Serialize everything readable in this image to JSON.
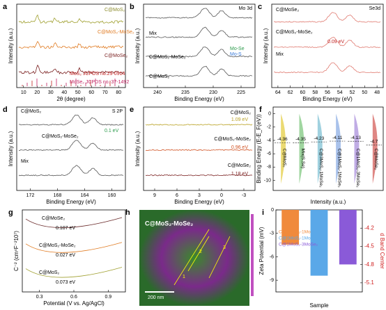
{
  "panels": [
    {
      "label": "a",
      "xlabel": "2θ (degree)",
      "ylabel": "Intensity (a.u.)",
      "xticks": [
        10,
        20,
        30,
        40,
        50,
        60,
        70,
        80
      ],
      "texts": [
        "C@MoS₂",
        "C@MoS₂-MoSe₂",
        "C@MoSe₂",
        "MoS₂ JCPDS no.29-0914",
        "MoSe₂ JCPDS no. 37-1492"
      ]
    },
    {
      "label": "b",
      "xlabel": "Binding Energy (eV)",
      "ylabel": "Intensity (a.u.)",
      "xticks": [
        240,
        235,
        230,
        225
      ],
      "texts": [
        "Mo 3d",
        "Mix",
        "C@MoS₂-MoSe₂",
        "C@MoS₂",
        "Mo-Se",
        "Mo-S"
      ]
    },
    {
      "label": "c",
      "xlabel": "Binding Energy (eV)",
      "ylabel": "Intensity (a.u.)",
      "xticks": [
        64,
        62,
        60,
        58,
        56,
        54,
        52,
        50,
        48
      ],
      "texts": [
        "Se3d",
        "C@MoSe₂",
        "C@MoS₂-MoSe₂",
        "Mix",
        "0.09 eV"
      ]
    },
    {
      "label": "d",
      "xlabel": "Binding Energy (eV)",
      "ylabel": "Intensity (a.u.)",
      "xticks": [
        172,
        168,
        164,
        160
      ],
      "texts": [
        "C@MoS₂",
        "S 2P",
        "C@MoS₂-MoSe₂",
        "Mix",
        "0.1 eV"
      ]
    },
    {
      "label": "e",
      "xlabel": "Binding Energy (eV)",
      "ylabel": "Intensity (a.u.)",
      "xticks": [
        9,
        6,
        3,
        0,
        -3
      ],
      "texts": [
        "C@MoS₂",
        "1.09 eV",
        "C@MoS₂-MoSe₂",
        "0.96 eV",
        "C@MoSe₂",
        "1.18 eV"
      ]
    },
    {
      "label": "f",
      "xlabel": "Intensity (a.u.)",
      "ylabel": "Binding Energy (E-E_F(eV))",
      "yticks": [
        0,
        -2,
        -4,
        -6,
        -8,
        -10
      ],
      "ylim": [
        1,
        -11.5
      ],
      "categories": [
        "C@MoS₂",
        "Mix(S,Se)",
        "C@3MoS₂-1MoSe₂",
        "C@1MoS₂-1MoSe₂",
        "C@1MoS₂-3MoSe₂",
        "C@MoSe₂"
      ],
      "values": [
        -4.36,
        -4.35,
        -4.23,
        -4.11,
        -4.13,
        -4.7
      ],
      "colors": [
        "#e8d35a",
        "#8fcf8f",
        "#8fc9d9",
        "#9ab7e8",
        "#b59ee0",
        "#d9726e"
      ],
      "texts": []
    },
    {
      "label": "g",
      "xlabel": "Potential (V vs. Ag/AgCl)",
      "ylabel": "C⁻² (cm⁴F⁻²10⁷)",
      "xticks": [
        0.3,
        0.6,
        0.9
      ],
      "texts": [
        "C@MoSe₂",
        "0.107 eV",
        "C@MoS₂-MoSe₂",
        "0.027 eV",
        "C@MoS₂",
        "0.073 eV"
      ]
    },
    {
      "label": "h",
      "texts": [
        "C@MoS₂-MoSe₂",
        "200 nm",
        "1",
        "2",
        "3"
      ]
    },
    {
      "label": "i",
      "xlabel": "Sample",
      "ylabel": "Zeta Potential  (mV)",
      "y2label": "d Band Center",
      "ylim": [
        0,
        -10.5
      ],
      "yticks": [
        0,
        -3,
        -6,
        -9
      ],
      "y2lim": [
        -3.9,
        -5.25
      ],
      "y2ticks": [
        -4.2,
        -4.5,
        -4.8,
        -5.1
      ],
      "series": [
        {
          "name": "C@3MoS₂-1MoSe₂",
          "color": "#f08a3c",
          "values": -4.44,
          "d_band": -4.23
        },
        {
          "name": "C@1MoS₂-1MoSe₂",
          "color": "#5aa8e8",
          "values": -8.42,
          "d_band": -4.11
        },
        {
          "name": "C@1MoS₂-3MoSe₂",
          "color": "#8a5ad8",
          "values": -6.98,
          "d_band": -4.13
        }
      ],
      "value_labels": [
        "-4.44",
        "-8.42",
        "-6.98"
      ],
      "texts": []
    }
  ]
}
